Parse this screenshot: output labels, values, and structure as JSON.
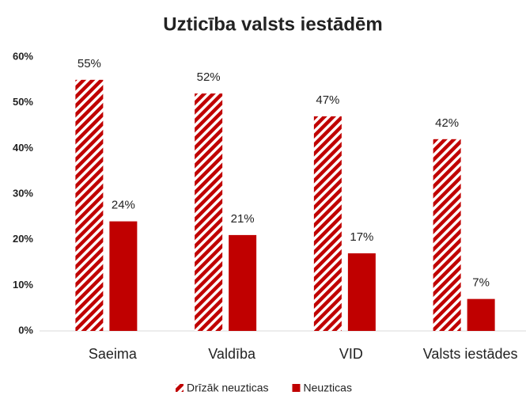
{
  "chart_data": {
    "type": "bar",
    "title": "Uzticība valsts iestādēm",
    "categories": [
      "Saeima",
      "Valdība",
      "VID",
      "Valsts iestādes"
    ],
    "series": [
      {
        "name": "Drīzāk neuzticas",
        "color": "#c00000",
        "pattern": "diagonal",
        "values": [
          55,
          52,
          47,
          42
        ],
        "value_labels": [
          "55%",
          "52%",
          "47%",
          "42%"
        ]
      },
      {
        "name": "Neuzticas",
        "color": "#c00000",
        "pattern": "solid",
        "values": [
          24,
          21,
          17,
          7
        ],
        "value_labels": [
          "24%",
          "21%",
          "17%",
          "7%"
        ]
      }
    ],
    "ylim": [
      0,
      60
    ],
    "yticks": [
      {
        "value": 0,
        "label": "0%"
      },
      {
        "value": 10,
        "label": "10%"
      },
      {
        "value": 20,
        "label": "20%"
      },
      {
        "value": 30,
        "label": "30%"
      },
      {
        "value": 40,
        "label": "40%"
      },
      {
        "value": 50,
        "label": "50%"
      },
      {
        "value": 60,
        "label": "60%"
      }
    ],
    "grid": false,
    "legend": "bottom"
  }
}
